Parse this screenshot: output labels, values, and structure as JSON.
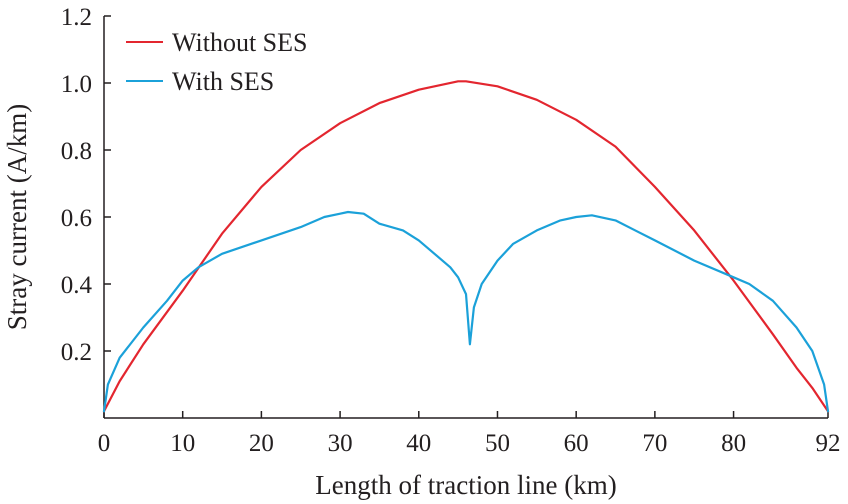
{
  "chart_data": {
    "type": "line",
    "title": "",
    "xlabel": "Length of traction line (km)",
    "ylabel": "Stray current (A/km)",
    "xlim": [
      0,
      92
    ],
    "ylim": [
      0,
      1.2
    ],
    "x_ticks": [
      "0",
      "10",
      "20",
      "30",
      "40",
      "50",
      "60",
      "70",
      "80",
      "92"
    ],
    "y_ticks": [
      "0.2",
      "0.4",
      "0.6",
      "0.8",
      "1.0",
      "1.2"
    ],
    "grid": false,
    "legend_position": "top-left",
    "series": [
      {
        "name": "Without SES",
        "color": "#e3262f",
        "x": [
          0,
          2,
          5,
          10,
          15,
          20,
          25,
          30,
          35,
          40,
          45,
          46,
          50,
          55,
          60,
          65,
          70,
          75,
          80,
          85,
          88,
          90,
          92
        ],
        "y": [
          0.02,
          0.11,
          0.22,
          0.38,
          0.55,
          0.69,
          0.8,
          0.88,
          0.94,
          0.98,
          1.005,
          1.005,
          0.99,
          0.95,
          0.89,
          0.81,
          0.69,
          0.56,
          0.41,
          0.25,
          0.15,
          0.09,
          0.02
        ]
      },
      {
        "name": "With SES",
        "color": "#1ba1d9",
        "x": [
          0,
          0.5,
          2,
          5,
          8,
          10,
          12,
          15,
          20,
          25,
          28,
          30,
          31,
          33,
          35,
          38,
          40,
          42,
          44,
          45,
          46,
          46.5,
          47,
          48,
          50,
          52,
          55,
          58,
          60,
          62,
          65,
          70,
          75,
          80,
          82,
          85,
          88,
          90,
          91.5,
          92
        ],
        "y": [
          0.02,
          0.1,
          0.18,
          0.27,
          0.35,
          0.41,
          0.45,
          0.49,
          0.53,
          0.57,
          0.6,
          0.61,
          0.615,
          0.61,
          0.58,
          0.56,
          0.53,
          0.49,
          0.45,
          0.42,
          0.37,
          0.22,
          0.33,
          0.4,
          0.47,
          0.52,
          0.56,
          0.59,
          0.6,
          0.605,
          0.59,
          0.53,
          0.47,
          0.42,
          0.4,
          0.35,
          0.27,
          0.2,
          0.1,
          0.02
        ]
      }
    ]
  }
}
